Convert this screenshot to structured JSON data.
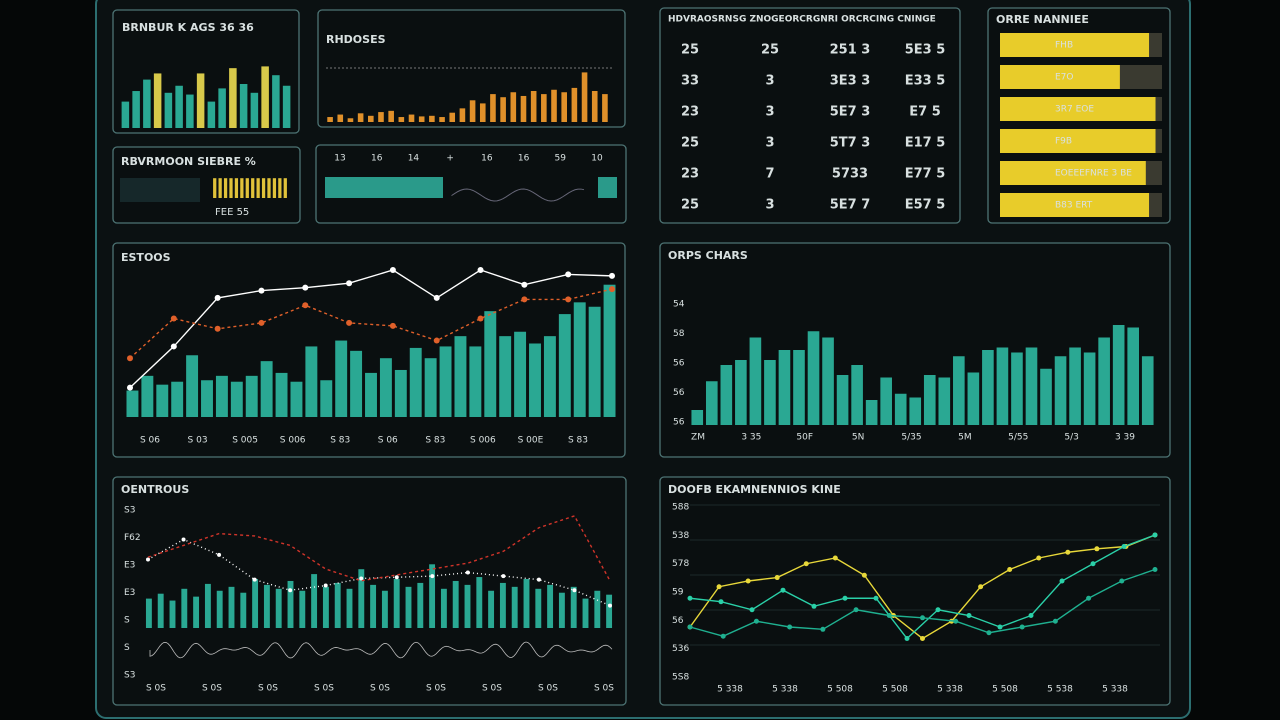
{
  "p1": {
    "title": "BRNBUR K AGS  36  36",
    "ylim": [
      0,
      100
    ],
    "series": [
      {
        "color": "#2aa893",
        "values": [
          30,
          42,
          55,
          null,
          40,
          48,
          38,
          null,
          30,
          45,
          null,
          50,
          40,
          null,
          60,
          48
        ]
      },
      {
        "color": "#d8c94a",
        "values": [
          null,
          null,
          null,
          62,
          null,
          null,
          null,
          62,
          null,
          null,
          68,
          null,
          null,
          70,
          null,
          null
        ]
      }
    ]
  },
  "p2": {
    "title": "RHDOSES",
    "ylim": [
      0,
      100
    ],
    "color": "#e0902a",
    "values": [
      8,
      12,
      6,
      14,
      10,
      16,
      18,
      8,
      12,
      9,
      10,
      8,
      15,
      22,
      35,
      30,
      45,
      40,
      48,
      42,
      50,
      45,
      52,
      48,
      55,
      80,
      50,
      45
    ]
  },
  "p3": {
    "title": "RBVRMOON SIEBRE  %",
    "note": "FEE 55",
    "ylim": [
      0,
      100
    ],
    "color": "#e0c23a",
    "values": [
      90,
      90,
      90,
      90,
      90,
      90,
      90,
      90,
      90,
      90,
      90,
      90,
      90,
      90
    ]
  },
  "p4": {
    "labels": [
      "13",
      "16",
      "14",
      "+",
      "16",
      "16",
      "59",
      "10"
    ]
  },
  "p5": {
    "title": "HDVRAOSRNSG ZNOGEORCRGNRI ORCRCING CNINGE",
    "rows": [
      [
        "25",
        "25",
        "251 3",
        "5E3 5"
      ],
      [
        "33",
        "3",
        "3E3 3",
        "E33 5"
      ],
      [
        "23",
        "3",
        "5E7 3",
        "E7 5"
      ],
      [
        "25",
        "3",
        "5T7 3",
        "E17 5"
      ],
      [
        "23",
        "7",
        "5733",
        "E77 5"
      ],
      [
        "25",
        "3",
        "5E7 7",
        "E57 5"
      ]
    ]
  },
  "p6": {
    "title": "ORRE NANNIEE",
    "xlim": [
      0,
      100
    ],
    "color": "#e8cc2a",
    "bars": [
      {
        "value": 92,
        "label": "FHB"
      },
      {
        "value": 74,
        "label": "E7O"
      },
      {
        "value": 96,
        "label": "3R7  EOE"
      },
      {
        "value": 96,
        "label": "F9B"
      },
      {
        "value": 90,
        "label": "EOEEEFNRE 3 BE"
      },
      {
        "value": 92,
        "label": "B83  ERT"
      }
    ]
  },
  "p7": {
    "title": "ESTOOS",
    "ylim": [
      0,
      100
    ],
    "color": "#2aa893",
    "values": [
      18,
      28,
      22,
      24,
      42,
      25,
      28,
      24,
      28,
      38,
      30,
      24,
      48,
      25,
      52,
      45,
      30,
      40,
      32,
      47,
      40,
      48,
      55,
      48,
      72,
      55,
      58,
      50,
      55,
      70,
      78,
      75,
      90
    ],
    "lines": [
      {
        "color": "#ffffff",
        "values": [
          20,
          48,
          81,
          86,
          88,
          91,
          100,
          81,
          100,
          90,
          97,
          96
        ]
      },
      {
        "color": "#e0602a",
        "values": [
          40,
          67,
          60,
          64,
          76,
          64,
          62,
          52,
          67,
          80,
          80,
          87
        ]
      }
    ],
    "xlabels": [
      "S 06",
      "S 03",
      "S 005",
      "S 006",
      "S 83",
      "S 06",
      "S 83",
      "S 006",
      "S 00E",
      "S 83"
    ]
  },
  "p8": {
    "title": "ORPS CHARS",
    "ylim": [
      0,
      100
    ],
    "color": "#2aa893",
    "values": [
      12,
      35,
      48,
      52,
      70,
      52,
      60,
      60,
      75,
      70,
      40,
      48,
      20,
      38,
      25,
      22,
      40,
      38,
      55,
      42,
      60,
      62,
      58,
      62,
      45,
      55,
      62,
      58,
      70,
      80,
      78,
      55
    ],
    "ylabels": [
      "54",
      "58",
      "56",
      "56",
      "56"
    ],
    "xlabels": [
      "ZM",
      "3 35",
      "50F",
      "5N",
      "5/35",
      "5M",
      "5/55",
      "5/3",
      "3 39"
    ]
  },
  "p9": {
    "title": "OENTROUS",
    "ylim": [
      0,
      100
    ],
    "color": "#2aa893",
    "values": [
      30,
      35,
      28,
      40,
      32,
      45,
      38,
      42,
      36,
      50,
      44,
      40,
      48,
      38,
      55,
      42,
      46,
      40,
      60,
      44,
      38,
      50,
      42,
      46,
      65,
      40,
      48,
      44,
      52,
      38,
      46,
      42,
      50,
      40,
      44,
      36,
      42,
      30,
      38,
      34
    ],
    "lines": [
      {
        "color": "#ffffff",
        "values": [
          58,
          75,
          62,
          41,
          32,
          36,
          42,
          43,
          44,
          47,
          44,
          41,
          32,
          19
        ]
      },
      {
        "color": "#d0342a",
        "values": [
          60,
          70,
          80,
          78,
          70,
          50,
          40,
          45,
          50,
          55,
          65,
          85,
          95,
          40
        ]
      }
    ],
    "ylabels": [
      "S3",
      "F62",
      "E3",
      "E3",
      "S",
      "S",
      "S3"
    ],
    "xlabels": [
      "S 0S",
      "S 0S",
      "S 0S",
      "S 0S",
      "S 0S",
      "S 0S",
      "S 0S",
      "S 0S",
      "S 0S"
    ]
  },
  "p10": {
    "title": "DOOFB EKAMNENNIOS KINE",
    "ylim": [
      0,
      100
    ],
    "lines": [
      {
        "color": "#e8d83a",
        "values": [
          20,
          55,
          60,
          63,
          75,
          80,
          65,
          30,
          10,
          25,
          55,
          70,
          80,
          85,
          88,
          90,
          100
        ]
      },
      {
        "color": "#2ad0a8",
        "values": [
          45,
          42,
          35,
          52,
          38,
          45,
          45,
          10,
          35,
          30,
          20,
          30,
          60,
          75,
          90,
          100
        ]
      },
      {
        "color": "#1fb090",
        "values": [
          20,
          12,
          25,
          20,
          18,
          35,
          30,
          28,
          25,
          15,
          20,
          25,
          45,
          60,
          70
        ]
      }
    ],
    "ylabels": [
      "588",
      "538",
      "578",
      "59",
      "56",
      "536",
      "5S8"
    ],
    "xlabels": [
      "5 338",
      "5 338",
      "5 508",
      "5 508",
      "5 338",
      "5 508",
      "5 538",
      "5 338"
    ]
  }
}
